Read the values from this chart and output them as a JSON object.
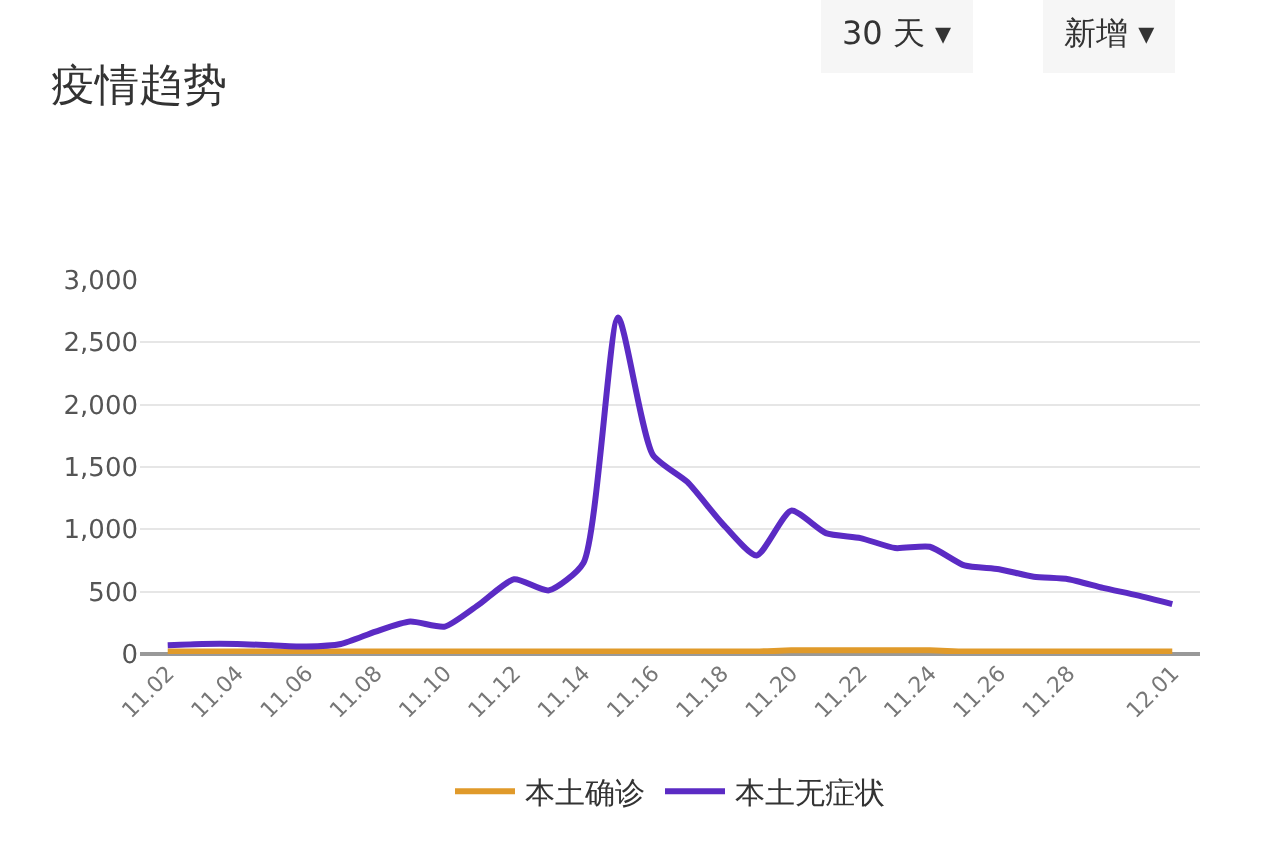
{
  "chart_data": {
    "type": "line",
    "title": "疫情趋势",
    "annotations": [
      "30 天 ▾",
      "新增 ▾"
    ],
    "categories": [
      "11.02",
      null,
      "11.04",
      null,
      "11.06",
      null,
      "11.08",
      null,
      "11.10",
      null,
      "11.12",
      null,
      "11.14",
      null,
      "11.16",
      null,
      "11.18",
      null,
      "11.20",
      null,
      "11.22",
      null,
      "11.24",
      null,
      "11.26",
      null,
      "11.28",
      null,
      null,
      "12.01"
    ],
    "series": [
      {
        "name": "本土确诊",
        "color": "#e09a2a",
        "values": [
          20,
          20,
          20,
          20,
          20,
          20,
          20,
          20,
          20,
          20,
          20,
          20,
          20,
          20,
          20,
          20,
          20,
          20,
          30,
          30,
          30,
          30,
          30,
          20,
          20,
          20,
          20,
          20,
          20,
          20
        ]
      },
      {
        "name": "本土无症状",
        "color": "#5b2bc4",
        "values": [
          70,
          80,
          80,
          70,
          60,
          80,
          180,
          260,
          220,
          400,
          600,
          510,
          730,
          2700,
          1600,
          1380,
          1050,
          790,
          1150,
          970,
          930,
          850,
          860,
          710,
          680,
          620,
          600,
          530,
          470,
          400
        ]
      }
    ],
    "ylim": [
      0,
      3000
    ],
    "yticks": [
      {
        "value": 0,
        "label": "0"
      },
      {
        "value": 500,
        "label": "500"
      },
      {
        "value": 1000,
        "label": "1,000"
      },
      {
        "value": 1500,
        "label": "1,500"
      },
      {
        "value": 2000,
        "label": "2,000"
      },
      {
        "value": 2500,
        "label": "2,500"
      },
      {
        "value": 3000,
        "label": "3,000"
      }
    ],
    "grid": "y",
    "legend": "bottom",
    "marker": "none",
    "line_style": "solid"
  }
}
